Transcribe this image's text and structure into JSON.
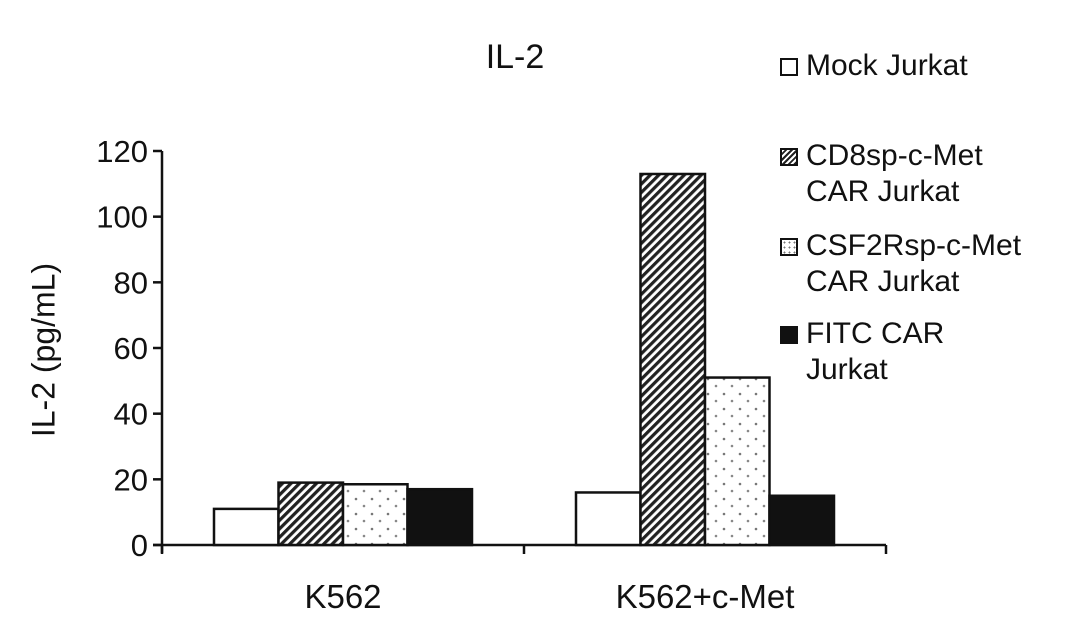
{
  "chart_data": {
    "type": "bar",
    "title": "IL-2",
    "xlabel": "",
    "ylabel": "IL-2 (pg/mL)",
    "ylim": [
      0,
      120
    ],
    "yticks": [
      0,
      20,
      40,
      60,
      80,
      100,
      120
    ],
    "categories": [
      "K562",
      "K562+c-Met"
    ],
    "series": [
      {
        "name": "Mock Jurkat",
        "pattern": "white",
        "values": [
          11,
          16
        ]
      },
      {
        "name": "CD8sp-c-Met CAR Jurkat",
        "pattern": "hatch",
        "values": [
          19,
          113
        ]
      },
      {
        "name": "CSF2Rsp-c-Met CAR Jurkat",
        "pattern": "dots",
        "values": [
          18.5,
          51
        ]
      },
      {
        "name": "FITC CAR Jurkat",
        "pattern": "black",
        "values": [
          17,
          15
        ]
      }
    ],
    "grid": false,
    "legend_position": "right"
  },
  "legend": [
    {
      "label": "Mock Jurkat"
    },
    {
      "label": "CD8sp-c-Met\nCAR Jurkat"
    },
    {
      "label": "CSF2Rsp-c-Met\nCAR Jurkat"
    },
    {
      "label": "FITC CAR\nJurkat"
    }
  ]
}
